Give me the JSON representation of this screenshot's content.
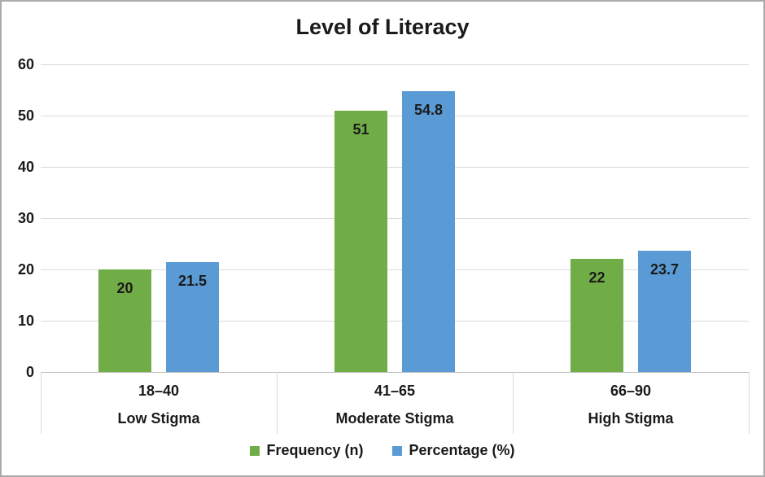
{
  "chart_data": {
    "type": "bar",
    "title": "Level of Literacy",
    "categories": [
      "18–40",
      "41–65",
      "66–90"
    ],
    "category_group_labels": [
      "Low Stigma",
      "Moderate Stigma",
      "High Stigma"
    ],
    "series": [
      {
        "id": "frequency",
        "name": "Frequency (n)",
        "color": "#70AD47",
        "values": [
          20,
          51,
          22
        ]
      },
      {
        "id": "percentage",
        "name": "Percentage (%)",
        "color": "#5B9BD5",
        "values": [
          21.5,
          54.8,
          23.7
        ]
      }
    ],
    "xlabel": "",
    "ylabel": "",
    "ylim": [
      0,
      60
    ],
    "yticks": [
      0,
      10,
      20,
      30,
      40,
      50,
      60
    ],
    "grid": true,
    "legend_position": "bottom",
    "data_labels": "inside-end"
  },
  "colors": {
    "frequency_green": "#70AD47",
    "percentage_blue": "#5B9BD5",
    "gridline": "#D9D9D9",
    "axis_line": "#BFBFBF",
    "divider": "#D9D9D9",
    "text": "#1A1A1A",
    "border": "#ABABAB",
    "background": "#FFFFFF"
  }
}
